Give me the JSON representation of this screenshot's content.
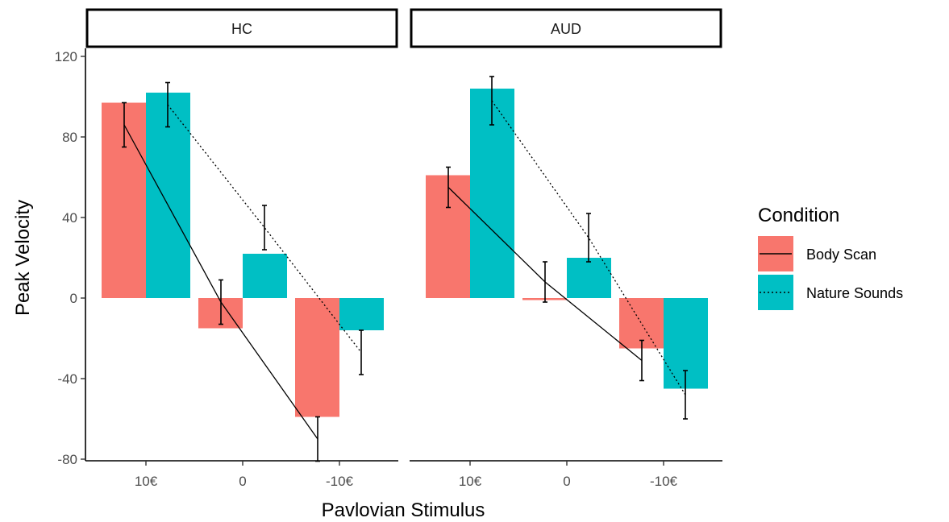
{
  "chart_data": {
    "type": "bar",
    "xlabel": "Pavlovian Stimulus",
    "ylabel": "Peak Velocity",
    "ylim": [
      -80,
      130
    ],
    "yticks": [
      -80,
      -40,
      0,
      40,
      80,
      120
    ],
    "categories": [
      "10€",
      "0",
      "-10€"
    ],
    "grid": false,
    "legend": {
      "title": "Condition",
      "position": "right"
    },
    "colors": {
      "Body Scan": "#F8766D",
      "Nature Sounds": "#00BFC4"
    },
    "line_styles": {
      "Body Scan": "solid",
      "Nature Sounds": "dotted"
    },
    "panels": [
      {
        "name": "HC",
        "series": [
          {
            "name": "Body Scan",
            "values": [
              97,
              -15,
              -59
            ],
            "error": [
              11,
              11,
              11
            ],
            "line": [
              86,
              -2,
              -70
            ]
          },
          {
            "name": "Nature Sounds",
            "values": [
              102,
              22,
              -16
            ],
            "error": [
              11,
              11,
              11
            ],
            "line": [
              96,
              35,
              -27
            ]
          }
        ]
      },
      {
        "name": "AUD",
        "series": [
          {
            "name": "Body Scan",
            "values": [
              61,
              -1,
              -25
            ],
            "error": [
              10,
              10,
              10
            ],
            "line": [
              55,
              8,
              -31
            ]
          },
          {
            "name": "Nature Sounds",
            "values": [
              104,
              20,
              -45
            ],
            "error": [
              12,
              12,
              12
            ],
            "line": [
              98,
              30,
              -48
            ]
          }
        ]
      }
    ]
  }
}
